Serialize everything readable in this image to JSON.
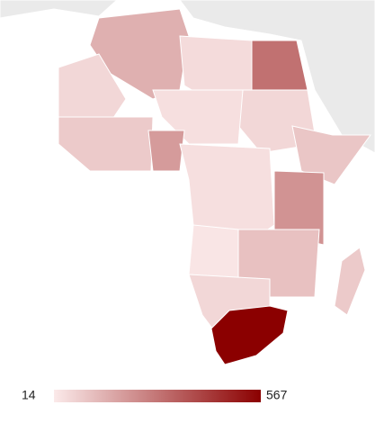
{
  "chart_data": {
    "type": "choropleth",
    "values": [
      150,
      60,
      50,
      300,
      60,
      40,
      90,
      200,
      100,
      40,
      220,
      25,
      110,
      60,
      567,
      90
    ],
    "min": 14,
    "max": 567,
    "colors": [
      "#fbeaea",
      "#8b0000"
    ]
  }
}
